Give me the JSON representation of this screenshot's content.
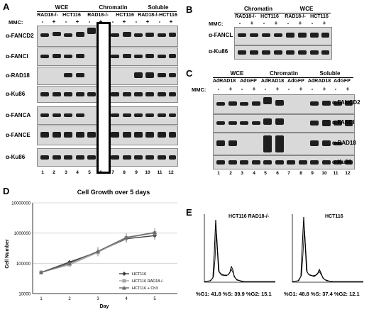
{
  "panelA": {
    "letter": "A",
    "headers": [
      "WCE",
      "Chromatin",
      "Soluble"
    ],
    "cell_lines": [
      "RAD18-/-",
      "HCT116",
      "RAD18-/-",
      "HCT116",
      "RAD18-/-",
      "HCT116"
    ],
    "mmc_label": "MMC:",
    "mmc": [
      "-",
      "+",
      "-",
      "+",
      "-",
      "+",
      "-",
      "+",
      "-",
      "+",
      "-",
      "+"
    ],
    "antibodies": [
      "α-FANCD2",
      "α-FANCI",
      "α-RAD18",
      "α-Ku86",
      "α-FANCA",
      "α-FANCE",
      "α-Ku86"
    ],
    "lanes": [
      "1",
      "2",
      "3",
      "4",
      "5",
      "6",
      "7",
      "8",
      "9",
      "10",
      "11",
      "12"
    ]
  },
  "panelB": {
    "letter": "B",
    "headers": [
      "Chromatin",
      "WCE"
    ],
    "cell_lines": [
      "RAD18-/-",
      "HCT116",
      "RAD18-/-",
      "HCT116"
    ],
    "mmc_label": "MMC:",
    "mmc": [
      "-",
      "+",
      "-",
      "+",
      "-",
      "+",
      "-",
      "+"
    ],
    "antibodies": [
      "α-FANCL",
      "α-Ku86"
    ]
  },
  "panelC": {
    "letter": "C",
    "headers": [
      "WCE",
      "Chromatin",
      "Soluble"
    ],
    "vectors": [
      "AdRAD18",
      "AdGFP",
      "AdRAD18",
      "AdGFP",
      "AdRAD18",
      "AdGFP"
    ],
    "mmc_label": "MMC:",
    "mmc": [
      "-",
      "+",
      "-",
      "+",
      "-",
      "+",
      "-",
      "+",
      "-",
      "+",
      "-",
      "+"
    ],
    "antibodies": [
      "α-FANCD2",
      "α-FANCI",
      "α-RAD18",
      "α-Ku86"
    ],
    "lanes": [
      "1",
      "2",
      "3",
      "4",
      "5",
      "6",
      "7",
      "8",
      "9",
      "10",
      "11",
      "12"
    ]
  },
  "panelD": {
    "letter": "D",
    "chart_data": {
      "type": "line",
      "title": "Cell Growth over 5 days",
      "xlabel": "Day",
      "ylabel": "Cell Number",
      "x": [
        1,
        2,
        3,
        4,
        5
      ],
      "yscale": "log",
      "ylim": [
        10000,
        10000000
      ],
      "y_ticks": [
        "10000",
        "100000",
        "1000000",
        "10000000"
      ],
      "x_ticks": [
        "1",
        "2",
        "3",
        "4",
        "5"
      ],
      "legend_position": "bottom-right",
      "series": [
        {
          "name": "HCT116",
          "values": [
            50000,
            110000,
            240000,
            650000,
            820000
          ],
          "color": "#404040",
          "marker": "diamond"
        },
        {
          "name": "HCT116 RAD18-/-",
          "values": [
            50000,
            90000,
            230000,
            700000,
            1000000
          ],
          "color": "#a6a6a6",
          "marker": "square"
        },
        {
          "name": "HCT116 + Ch3",
          "values": [
            50000,
            100000,
            250000,
            720000,
            1050000
          ],
          "color": "#6a6a6a",
          "marker": "triangle"
        }
      ]
    }
  },
  "panelE": {
    "letter": "E",
    "plots": [
      {
        "title": "HCT116 RAD18-/-",
        "stats": "%G1: 41.8  %S: 39.9  %G2: 15.1"
      },
      {
        "title": "HCT116",
        "stats": "%G1: 48.8  %S: 37.4  %G2: 12.1"
      }
    ]
  }
}
